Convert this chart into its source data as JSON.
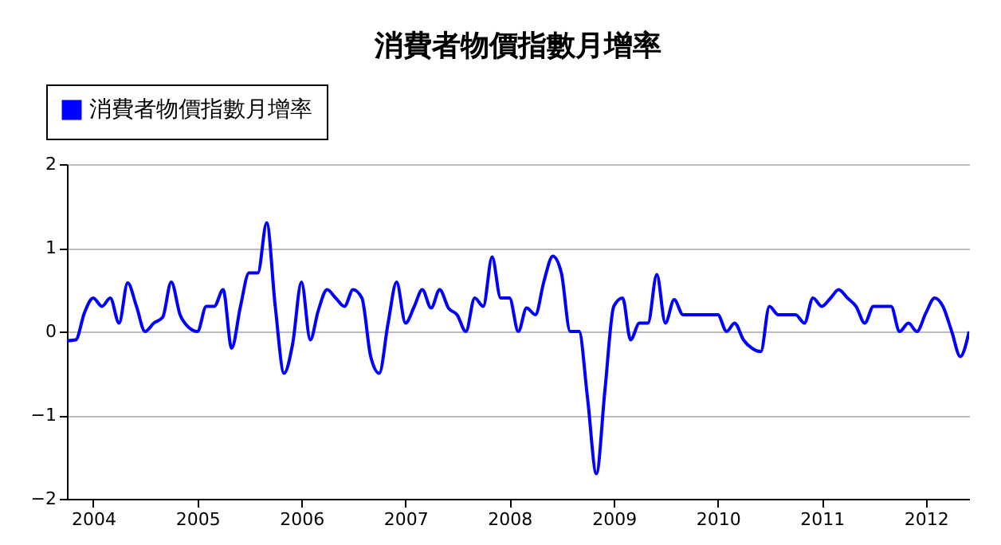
{
  "chart_data": {
    "type": "line",
    "title": "消費者物價指數月增率",
    "x": [
      "2003-10",
      "2003-11",
      "2003-12",
      "2004-01",
      "2004-02",
      "2004-03",
      "2004-04",
      "2004-05",
      "2004-06",
      "2004-07",
      "2004-08",
      "2004-09",
      "2004-10",
      "2004-11",
      "2004-12",
      "2005-01",
      "2005-02",
      "2005-03",
      "2005-04",
      "2005-05",
      "2005-06",
      "2005-07",
      "2005-08",
      "2005-09",
      "2005-10",
      "2005-11",
      "2005-12",
      "2006-01",
      "2006-02",
      "2006-03",
      "2006-04",
      "2006-05",
      "2006-06",
      "2006-07",
      "2006-08",
      "2006-09",
      "2006-10",
      "2006-11",
      "2006-12",
      "2007-01",
      "2007-02",
      "2007-03",
      "2007-04",
      "2007-05",
      "2007-06",
      "2007-07",
      "2007-08",
      "2007-09",
      "2007-10",
      "2007-11",
      "2007-12",
      "2008-01",
      "2008-02",
      "2008-03",
      "2008-04",
      "2008-05",
      "2008-06",
      "2008-07",
      "2008-08",
      "2008-09",
      "2008-10",
      "2008-11",
      "2008-12",
      "2009-01",
      "2009-02",
      "2009-03",
      "2009-04",
      "2009-05",
      "2009-06",
      "2009-07",
      "2009-08",
      "2009-09",
      "2009-10",
      "2009-11",
      "2009-12",
      "2010-01",
      "2010-02",
      "2010-03",
      "2010-04",
      "2010-05",
      "2010-06",
      "2010-07",
      "2010-08",
      "2010-09",
      "2010-10",
      "2010-11",
      "2010-12",
      "2011-01",
      "2011-02",
      "2011-03",
      "2011-04",
      "2011-05",
      "2011-06",
      "2011-07",
      "2011-08",
      "2011-09",
      "2011-10",
      "2011-11",
      "2011-12",
      "2012-01",
      "2012-02",
      "2012-03",
      "2012-04",
      "2012-05",
      "2012-06"
    ],
    "series": [
      {
        "name": "消費者物價指數月增率",
        "color": "#0000ff",
        "values": [
          -0.11,
          -0.1,
          0.22,
          0.4,
          0.3,
          0.4,
          0.1,
          0.58,
          0.3,
          0.0,
          0.1,
          0.17,
          0.59,
          0.2,
          0.05,
          0.0,
          0.3,
          0.3,
          0.5,
          -0.2,
          0.3,
          0.7,
          0.7,
          1.3,
          0.3,
          -0.5,
          -0.15,
          0.59,
          -0.1,
          0.25,
          0.5,
          0.4,
          0.3,
          0.5,
          0.4,
          -0.3,
          -0.5,
          0.1,
          0.59,
          0.1,
          0.3,
          0.5,
          0.28,
          0.5,
          0.28,
          0.2,
          0.0,
          0.4,
          0.3,
          0.89,
          0.4,
          0.4,
          0.0,
          0.28,
          0.2,
          0.6,
          0.9,
          0.7,
          0.0,
          0.0,
          -0.8,
          -1.7,
          -0.7,
          0.3,
          0.4,
          -0.1,
          0.1,
          0.1,
          0.68,
          0.1,
          0.38,
          0.2,
          0.2,
          0.2,
          0.2,
          0.2,
          0.0,
          0.1,
          -0.1,
          -0.2,
          -0.24,
          0.3,
          0.2,
          0.2,
          0.2,
          0.1,
          0.4,
          0.3,
          0.4,
          0.5,
          0.4,
          0.3,
          0.1,
          0.3,
          0.3,
          0.3,
          0.0,
          0.1,
          0.0,
          0.22,
          0.4,
          0.3,
          0.0,
          -0.3,
          0.0
        ]
      }
    ],
    "xlim": [
      "2003-10",
      "2012-06"
    ],
    "xticks": [
      "2004",
      "2005",
      "2006",
      "2007",
      "2008",
      "2009",
      "2010",
      "2011",
      "2012"
    ],
    "ylim": [
      -2,
      2
    ],
    "yticks": [
      -2,
      -1,
      0,
      1,
      2
    ],
    "grid": "y",
    "legend": "top left",
    "marker": "none",
    "line_style": "solid"
  }
}
